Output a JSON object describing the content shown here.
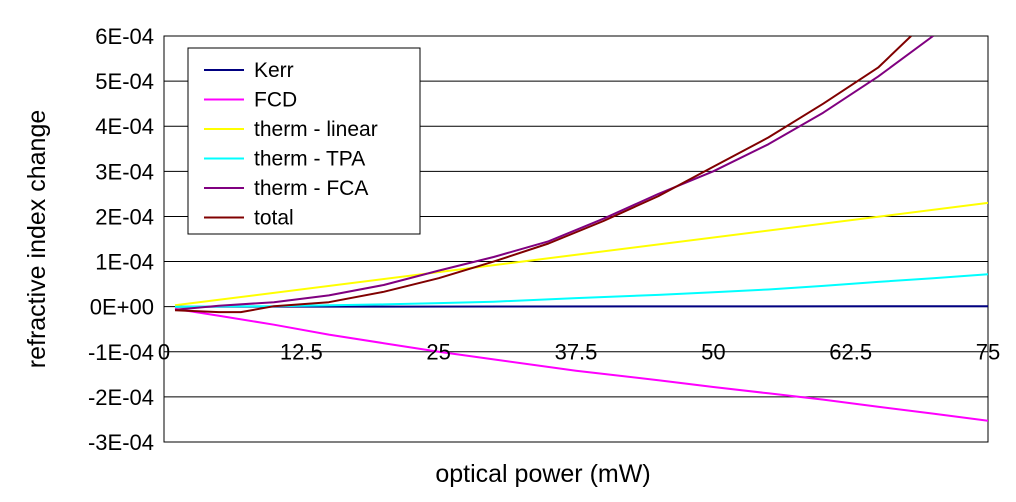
{
  "chart_data": {
    "type": "line",
    "xlabel": "optical power (mW)",
    "ylabel": "refractive index change",
    "xlim": [
      0,
      75
    ],
    "ylim": [
      -0.0003,
      0.0006
    ],
    "x_ticks": [
      0,
      12.5,
      25,
      37.5,
      50,
      62.5,
      75
    ],
    "x_tick_labels": [
      "0",
      "12.5",
      "25",
      "37.5",
      "50",
      "62.5",
      "75"
    ],
    "y_ticks": [
      0.0006,
      0.0005,
      0.0004,
      0.0003,
      0.0002,
      0.0001,
      0,
      -0.0001,
      -0.0002,
      -0.0003
    ],
    "y_tick_labels": [
      "6E-04",
      "5E-04",
      "4E-04",
      "3E-04",
      "2E-04",
      "1E-04",
      "0E+00",
      "-1E-04",
      "-2E-04",
      "-3E-04"
    ],
    "grid": "horizontal",
    "legend_position": "top-left",
    "series": [
      {
        "name": "Kerr",
        "color": "#000080",
        "x": [
          1,
          75
        ],
        "y": [
          0,
          1e-06
        ]
      },
      {
        "name": "FCD",
        "color": "#ff00ff",
        "x": [
          1,
          5,
          10,
          15,
          20,
          25,
          30,
          37.5,
          45,
          50,
          55,
          60,
          65,
          70,
          75
        ],
        "y": [
          -5e-06,
          -2e-05,
          -4e-05,
          -6.2e-05,
          -8.1e-05,
          -0.0001,
          -0.000117,
          -0.000142,
          -0.000163,
          -0.000178,
          -0.000192,
          -0.000206,
          -0.000222,
          -0.000237,
          -0.000253
        ]
      },
      {
        "name": "therm - linear",
        "color": "#ffff00",
        "x": [
          1,
          75
        ],
        "y": [
          3e-06,
          0.00023
        ]
      },
      {
        "name": "therm - TPA",
        "color": "#00ffff",
        "x": [
          1,
          10,
          20,
          25,
          30,
          37.5,
          45,
          50,
          55,
          60,
          65,
          70,
          75
        ],
        "y": [
          0,
          1e-06,
          5e-06,
          8e-06,
          1.1e-05,
          1.9e-05,
          2.6e-05,
          3.2e-05,
          3.8e-05,
          4.6e-05,
          5.5e-05,
          6.3e-05,
          7.2e-05
        ]
      },
      {
        "name": "therm - FCA",
        "color": "#800080",
        "x": [
          1,
          5,
          10,
          15,
          20,
          25,
          30,
          35,
          40,
          45,
          50,
          55,
          60,
          65,
          70
        ],
        "y": [
          -7e-06,
          2e-06,
          1e-05,
          2.5e-05,
          4.8e-05,
          8e-05,
          0.00011,
          0.000145,
          0.000195,
          0.00025,
          0.0003,
          0.00036,
          0.00043,
          0.00051,
          0.0006
        ]
      },
      {
        "name": "total",
        "color": "#800000",
        "x": [
          1,
          5,
          7,
          10,
          15,
          20,
          25,
          30,
          35,
          40,
          45,
          50,
          55,
          60,
          65,
          68
        ],
        "y": [
          -8e-06,
          -1.2e-05,
          -1.2e-05,
          1e-06,
          1e-05,
          3.3e-05,
          6.3e-05,
          0.0001,
          0.00014,
          0.00019,
          0.000245,
          0.00031,
          0.000375,
          0.00045,
          0.00053,
          0.0006
        ]
      }
    ]
  }
}
